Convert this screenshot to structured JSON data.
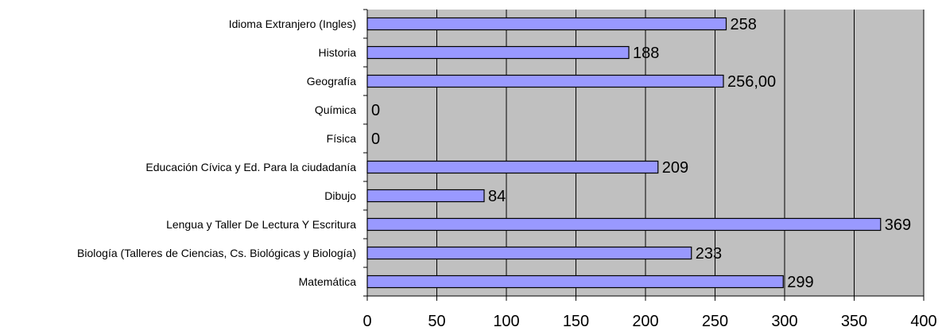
{
  "chart_data": {
    "type": "bar",
    "orientation": "horizontal",
    "title": "",
    "xlabel": "",
    "ylabel": "",
    "categories": [
      "Idioma Extranjero (Ingles)",
      "Historia",
      "Geografía",
      "Química",
      "Física",
      "Educación Cívica y Ed. Para la ciudadanía",
      "Dibujo",
      "Lengua y Taller De Lectura Y Escritura",
      "Biología (Talleres de Ciencias, Cs. Biológicas y Biología)",
      "Matemática"
    ],
    "values": [
      258,
      188,
      256,
      0,
      0,
      209,
      84,
      369,
      233,
      299
    ],
    "data_labels": [
      "258",
      "188",
      "256,00",
      "0",
      "0",
      "209",
      "84",
      "369",
      "233",
      "299"
    ],
    "xlim": [
      0,
      400
    ],
    "x_ticks": [
      "0",
      "50",
      "100",
      "150",
      "200",
      "250",
      "300",
      "350",
      "400"
    ],
    "grid": true,
    "legend": "none",
    "colors": {
      "bar_fill": "#9999ff",
      "bar_stroke": "#000000",
      "plot_background": "#c0c0c0",
      "gridline": "#000000"
    }
  }
}
